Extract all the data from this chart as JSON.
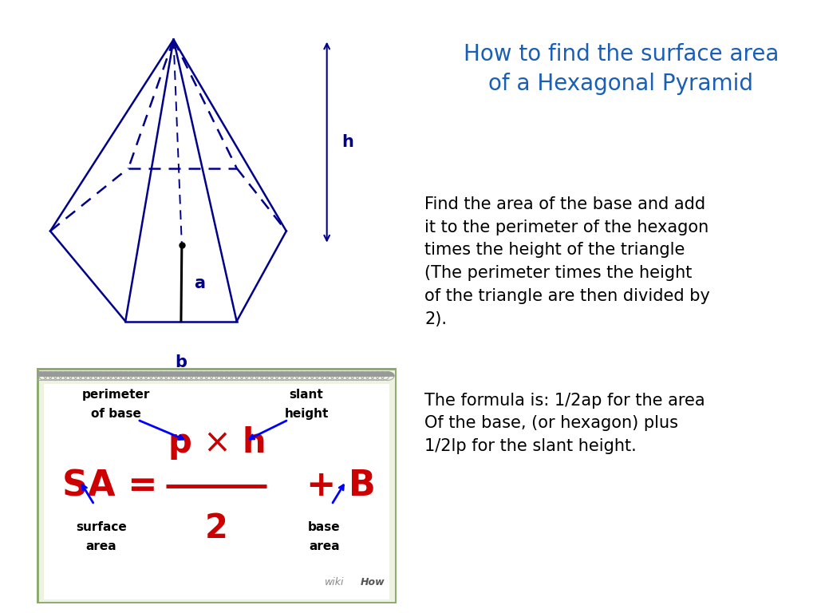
{
  "title": "How to find the surface area\nof a Hexagonal Pyramid",
  "title_color": "#1a5fb4",
  "title_fontsize": 20,
  "body_text1": "Find the area of the base and add\nit to the perimeter of the hexagon\ntimes the height of the triangle\n(The perimeter times the height\nof the triangle are then divided by\n2).",
  "body_text2": "The formula is: 1/2ap for the area\nOf the base, (or hexagon) plus\n1/2lp for the slant height.",
  "body_color": "#000000",
  "body_fontsize": 15,
  "pyramid_color": "#00008B",
  "background_color": "#ffffff",
  "notebook_bg": "#eef2e0",
  "notebook_border": "#8aab6e",
  "formula_color": "#cc0000",
  "label_fontsize": 13,
  "wikihow_text": "wikiHow"
}
